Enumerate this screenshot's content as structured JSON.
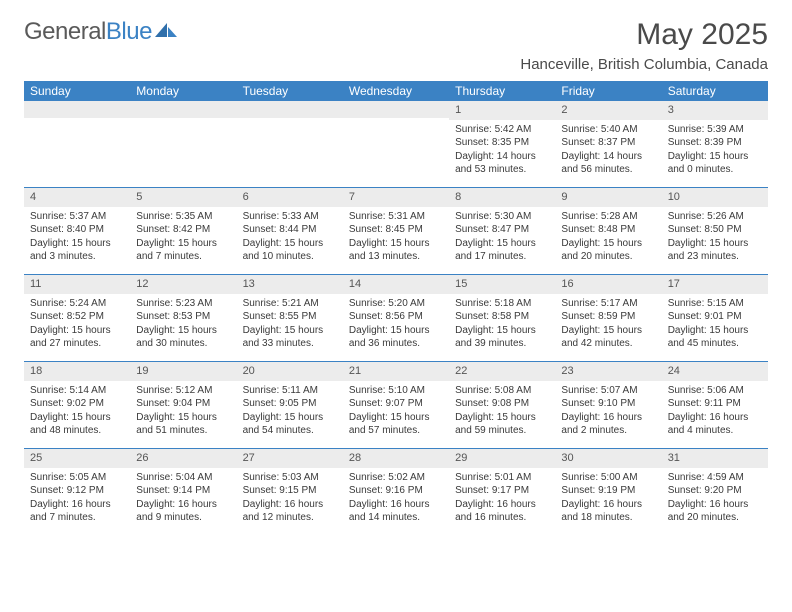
{
  "brand": {
    "part1": "General",
    "part2": "Blue"
  },
  "title": "May 2025",
  "location": "Hanceville, British Columbia, Canada",
  "colors": {
    "header_bg": "#3b82c4",
    "header_text": "#ffffff",
    "daynum_bg": "#ececec",
    "row_border": "#3b82c4",
    "body_text": "#3a3a3a",
    "title_text": "#4a4a4a",
    "logo_gray": "#5a5a5a",
    "logo_blue": "#3b82c4"
  },
  "weekdays": [
    "Sunday",
    "Monday",
    "Tuesday",
    "Wednesday",
    "Thursday",
    "Friday",
    "Saturday"
  ],
  "weeks": [
    [
      {
        "day": "",
        "lines": []
      },
      {
        "day": "",
        "lines": []
      },
      {
        "day": "",
        "lines": []
      },
      {
        "day": "",
        "lines": []
      },
      {
        "day": "1",
        "lines": [
          "Sunrise: 5:42 AM",
          "Sunset: 8:35 PM",
          "Daylight: 14 hours",
          "and 53 minutes."
        ]
      },
      {
        "day": "2",
        "lines": [
          "Sunrise: 5:40 AM",
          "Sunset: 8:37 PM",
          "Daylight: 14 hours",
          "and 56 minutes."
        ]
      },
      {
        "day": "3",
        "lines": [
          "Sunrise: 5:39 AM",
          "Sunset: 8:39 PM",
          "Daylight: 15 hours",
          "and 0 minutes."
        ]
      }
    ],
    [
      {
        "day": "4",
        "lines": [
          "Sunrise: 5:37 AM",
          "Sunset: 8:40 PM",
          "Daylight: 15 hours",
          "and 3 minutes."
        ]
      },
      {
        "day": "5",
        "lines": [
          "Sunrise: 5:35 AM",
          "Sunset: 8:42 PM",
          "Daylight: 15 hours",
          "and 7 minutes."
        ]
      },
      {
        "day": "6",
        "lines": [
          "Sunrise: 5:33 AM",
          "Sunset: 8:44 PM",
          "Daylight: 15 hours",
          "and 10 minutes."
        ]
      },
      {
        "day": "7",
        "lines": [
          "Sunrise: 5:31 AM",
          "Sunset: 8:45 PM",
          "Daylight: 15 hours",
          "and 13 minutes."
        ]
      },
      {
        "day": "8",
        "lines": [
          "Sunrise: 5:30 AM",
          "Sunset: 8:47 PM",
          "Daylight: 15 hours",
          "and 17 minutes."
        ]
      },
      {
        "day": "9",
        "lines": [
          "Sunrise: 5:28 AM",
          "Sunset: 8:48 PM",
          "Daylight: 15 hours",
          "and 20 minutes."
        ]
      },
      {
        "day": "10",
        "lines": [
          "Sunrise: 5:26 AM",
          "Sunset: 8:50 PM",
          "Daylight: 15 hours",
          "and 23 minutes."
        ]
      }
    ],
    [
      {
        "day": "11",
        "lines": [
          "Sunrise: 5:24 AM",
          "Sunset: 8:52 PM",
          "Daylight: 15 hours",
          "and 27 minutes."
        ]
      },
      {
        "day": "12",
        "lines": [
          "Sunrise: 5:23 AM",
          "Sunset: 8:53 PM",
          "Daylight: 15 hours",
          "and 30 minutes."
        ]
      },
      {
        "day": "13",
        "lines": [
          "Sunrise: 5:21 AM",
          "Sunset: 8:55 PM",
          "Daylight: 15 hours",
          "and 33 minutes."
        ]
      },
      {
        "day": "14",
        "lines": [
          "Sunrise: 5:20 AM",
          "Sunset: 8:56 PM",
          "Daylight: 15 hours",
          "and 36 minutes."
        ]
      },
      {
        "day": "15",
        "lines": [
          "Sunrise: 5:18 AM",
          "Sunset: 8:58 PM",
          "Daylight: 15 hours",
          "and 39 minutes."
        ]
      },
      {
        "day": "16",
        "lines": [
          "Sunrise: 5:17 AM",
          "Sunset: 8:59 PM",
          "Daylight: 15 hours",
          "and 42 minutes."
        ]
      },
      {
        "day": "17",
        "lines": [
          "Sunrise: 5:15 AM",
          "Sunset: 9:01 PM",
          "Daylight: 15 hours",
          "and 45 minutes."
        ]
      }
    ],
    [
      {
        "day": "18",
        "lines": [
          "Sunrise: 5:14 AM",
          "Sunset: 9:02 PM",
          "Daylight: 15 hours",
          "and 48 minutes."
        ]
      },
      {
        "day": "19",
        "lines": [
          "Sunrise: 5:12 AM",
          "Sunset: 9:04 PM",
          "Daylight: 15 hours",
          "and 51 minutes."
        ]
      },
      {
        "day": "20",
        "lines": [
          "Sunrise: 5:11 AM",
          "Sunset: 9:05 PM",
          "Daylight: 15 hours",
          "and 54 minutes."
        ]
      },
      {
        "day": "21",
        "lines": [
          "Sunrise: 5:10 AM",
          "Sunset: 9:07 PM",
          "Daylight: 15 hours",
          "and 57 minutes."
        ]
      },
      {
        "day": "22",
        "lines": [
          "Sunrise: 5:08 AM",
          "Sunset: 9:08 PM",
          "Daylight: 15 hours",
          "and 59 minutes."
        ]
      },
      {
        "day": "23",
        "lines": [
          "Sunrise: 5:07 AM",
          "Sunset: 9:10 PM",
          "Daylight: 16 hours",
          "and 2 minutes."
        ]
      },
      {
        "day": "24",
        "lines": [
          "Sunrise: 5:06 AM",
          "Sunset: 9:11 PM",
          "Daylight: 16 hours",
          "and 4 minutes."
        ]
      }
    ],
    [
      {
        "day": "25",
        "lines": [
          "Sunrise: 5:05 AM",
          "Sunset: 9:12 PM",
          "Daylight: 16 hours",
          "and 7 minutes."
        ]
      },
      {
        "day": "26",
        "lines": [
          "Sunrise: 5:04 AM",
          "Sunset: 9:14 PM",
          "Daylight: 16 hours",
          "and 9 minutes."
        ]
      },
      {
        "day": "27",
        "lines": [
          "Sunrise: 5:03 AM",
          "Sunset: 9:15 PM",
          "Daylight: 16 hours",
          "and 12 minutes."
        ]
      },
      {
        "day": "28",
        "lines": [
          "Sunrise: 5:02 AM",
          "Sunset: 9:16 PM",
          "Daylight: 16 hours",
          "and 14 minutes."
        ]
      },
      {
        "day": "29",
        "lines": [
          "Sunrise: 5:01 AM",
          "Sunset: 9:17 PM",
          "Daylight: 16 hours",
          "and 16 minutes."
        ]
      },
      {
        "day": "30",
        "lines": [
          "Sunrise: 5:00 AM",
          "Sunset: 9:19 PM",
          "Daylight: 16 hours",
          "and 18 minutes."
        ]
      },
      {
        "day": "31",
        "lines": [
          "Sunrise: 4:59 AM",
          "Sunset: 9:20 PM",
          "Daylight: 16 hours",
          "and 20 minutes."
        ]
      }
    ]
  ]
}
